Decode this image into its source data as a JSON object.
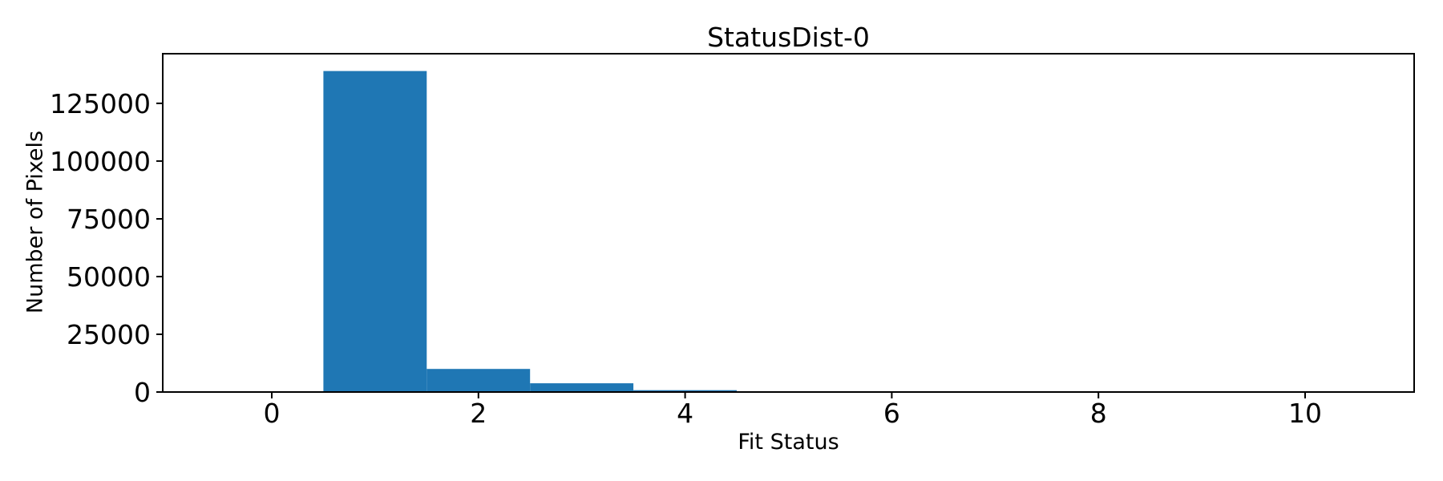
{
  "figure": {
    "background_color": "#ffffff",
    "text_color": "#000000"
  },
  "chart_data": {
    "type": "bar",
    "subtype": "histogram",
    "title": "StatusDist-0",
    "xlabel": "Fit Status",
    "ylabel": "Number of Pixels",
    "bin_edges": [
      -0.5,
      0.5,
      1.5,
      2.5,
      3.5,
      4.5,
      5.5,
      6.5,
      7.5,
      8.5,
      9.5,
      10.5
    ],
    "bin_centers": [
      0,
      1,
      2,
      3,
      4,
      5,
      6,
      7,
      8,
      9,
      10
    ],
    "values": [
      0,
      139000,
      10000,
      3800,
      800,
      0,
      0,
      0,
      0,
      0,
      0
    ],
    "xticks": [
      0,
      2,
      4,
      6,
      8,
      10
    ],
    "yticks": [
      0,
      25000,
      50000,
      75000,
      100000,
      125000
    ],
    "xlim": [
      -1.055,
      11.055
    ],
    "ylim": [
      0,
      146500
    ],
    "bar_color": "#1f77b4",
    "axis_color": "#000000",
    "grid": false,
    "legend_position": "none"
  }
}
